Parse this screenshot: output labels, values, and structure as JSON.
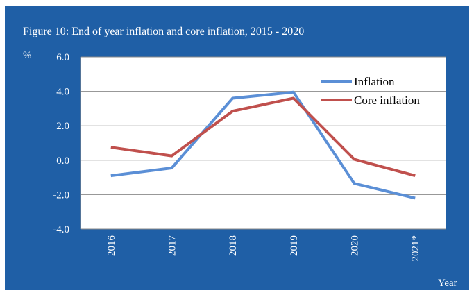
{
  "chart_data": {
    "type": "line",
    "title": "Figure 10: End of year inflation and core inflation, 2015 - 2020",
    "ylabel": "%",
    "xlabel": "Year",
    "categories": [
      "2016",
      "2017",
      "2018",
      "2019",
      "2020",
      "2021*"
    ],
    "y_ticks": [
      "6.0",
      "4.0",
      "2.0",
      "0.0",
      "-2.0",
      "-4.0"
    ],
    "ylim": [
      -4,
      6
    ],
    "grid": true,
    "legend_position": "top-right",
    "series": [
      {
        "name": "Inflation",
        "color": "#5b8fd6",
        "values": [
          -0.9,
          -0.45,
          3.6,
          3.95,
          -1.35,
          -2.2
        ]
      },
      {
        "name": "Core inflation",
        "color": "#c0504d",
        "values": [
          0.75,
          0.25,
          2.85,
          3.6,
          0.05,
          -0.9
        ]
      }
    ]
  }
}
